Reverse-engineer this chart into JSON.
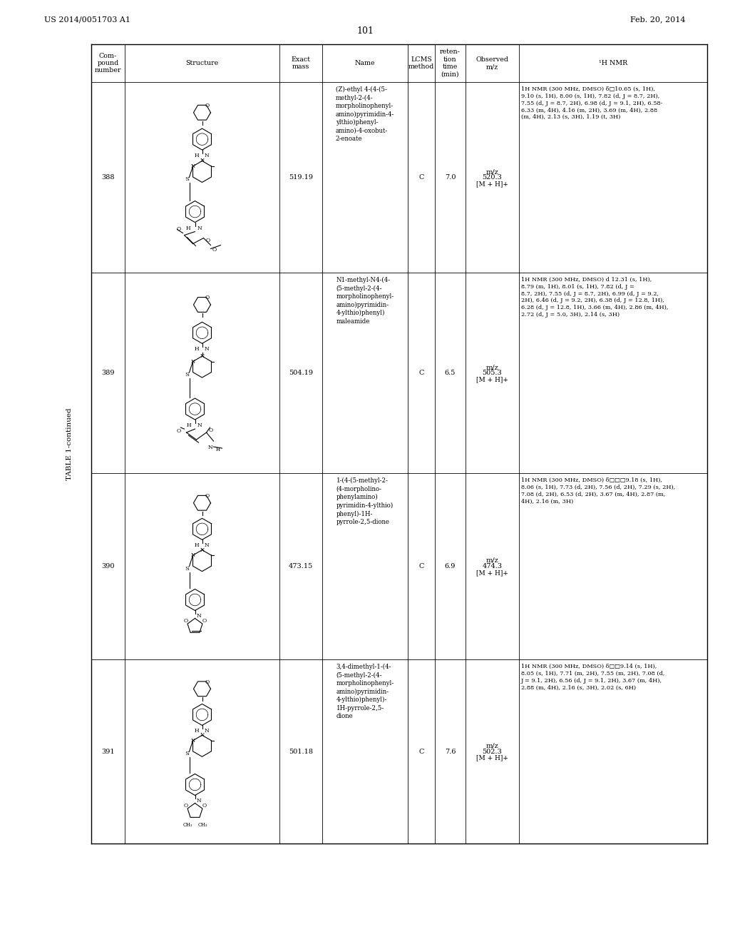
{
  "page_header_left": "US 2014/0051703 A1",
  "page_header_right": "Feb. 20, 2014",
  "page_number": "101",
  "table_title": "TABLE 1-continued",
  "rows": [
    {
      "compound": "388",
      "exact_mass": "519.19",
      "name": "(Z)-ethyl 4-(4-(5-\nmethyl-2-(4-\nmorpholinophenyl-\namino)pyrimidin-4-\nylthio)phenyl-\namino)-4-oxobut-\n2-enoate",
      "lcms": "C",
      "retention": "7.0",
      "mz_line1": "m/z",
      "mz_line2": "520.3",
      "mz_line3": "[M + H]+",
      "nmr": "1H NMR (300 MHz, DMSO) δ□10.65 (s, 1H),\n9.10 (s, 1H), 8.00 (s, 1H), 7.82 (d, J = 8.7, 2H),\n7.55 (d, J = 8.7, 2H), 6.98 (d, J = 9.1, 2H), 6.58-\n6.33 (m, 4H), 4.16 (m, 2H), 3.69 (m, 4H), 2.88\n(m, 4H), 2.13 (s, 3H), 1.19 (t, 3H)"
    },
    {
      "compound": "389",
      "exact_mass": "504.19",
      "name": "N1-methyl-N4-(4-\n(5-methyl-2-(4-\nmorpholinophenyl-\namino)pyrimidin-\n4-ylthio)phenyl)\nmaleamide",
      "lcms": "C",
      "retention": "6.5",
      "mz_line1": "m/z",
      "mz_line2": "505.3",
      "mz_line3": "[M + H]+",
      "nmr": "1H NMR (300 MHz, DMSO) d 12.31 (s, 1H),\n8.79 (m, 1H), 8.01 (s, 1H), 7.82 (d, J =\n8.7, 2H), 7.55 (d, J = 8.7, 2H), 6.99 (d, J = 9.2,\n2H), 6.46 (d, J = 9.2, 2H), 6.38 (d, J = 12.8, 1H),\n6.28 (d, J = 12.8, 1H), 3.66 (m, 4H), 2.86 (m, 4H),\n2.72 (d, J = 5.0, 3H), 2.14 (s, 3H)"
    },
    {
      "compound": "390",
      "exact_mass": "473.15",
      "name": "1-(4-(5-methyl-2-\n(4-morpholino-\nphenylamino)\npyrimidin-4-ylthio)\nphenyl)-1H-\npyrrole-2,5-dione",
      "lcms": "C",
      "retention": "6.9",
      "mz_line1": "m/z",
      "mz_line2": "474.3",
      "mz_line3": "[M + H]+",
      "nmr": "1H NMR (300 MHz, DMSO) δ□□□9.18 (s, 1H),\n8.06 (s, 1H), 7.73 (d, 2H), 7.56 (d, 2H), 7.29 (s, 2H),\n7.08 (d, 2H), 6.53 (d, 2H), 3.67 (m, 4H), 2.87 (m,\n4H), 2.16 (m, 3H)"
    },
    {
      "compound": "391",
      "exact_mass": "501.18",
      "name": "3,4-dimethyl-1-(4-\n(5-methyl-2-(4-\nmorpholinophenyl-\namino)pyrimidin-\n4-ylthio)phenyl)-\n1H-pyrrole-2,5-\ndione",
      "lcms": "C",
      "retention": "7.6",
      "mz_line1": "m/z",
      "mz_line2": "502.3",
      "mz_line3": "[M + H]+",
      "nmr": "1H NMR (300 MHz, DMSO) δ□□9.14 (s, 1H),\n8.05 (s, 1H), 7.71 (m, 2H), 7.55 (m, 2H), 7.08 (d,\nJ = 9.1, 2H), 6.56 (d, J = 9.1, 2H), 3.67 (m, 4H),\n2.88 (m, 4H), 2.16 (s, 3H), 2.02 (s, 6H)"
    }
  ]
}
